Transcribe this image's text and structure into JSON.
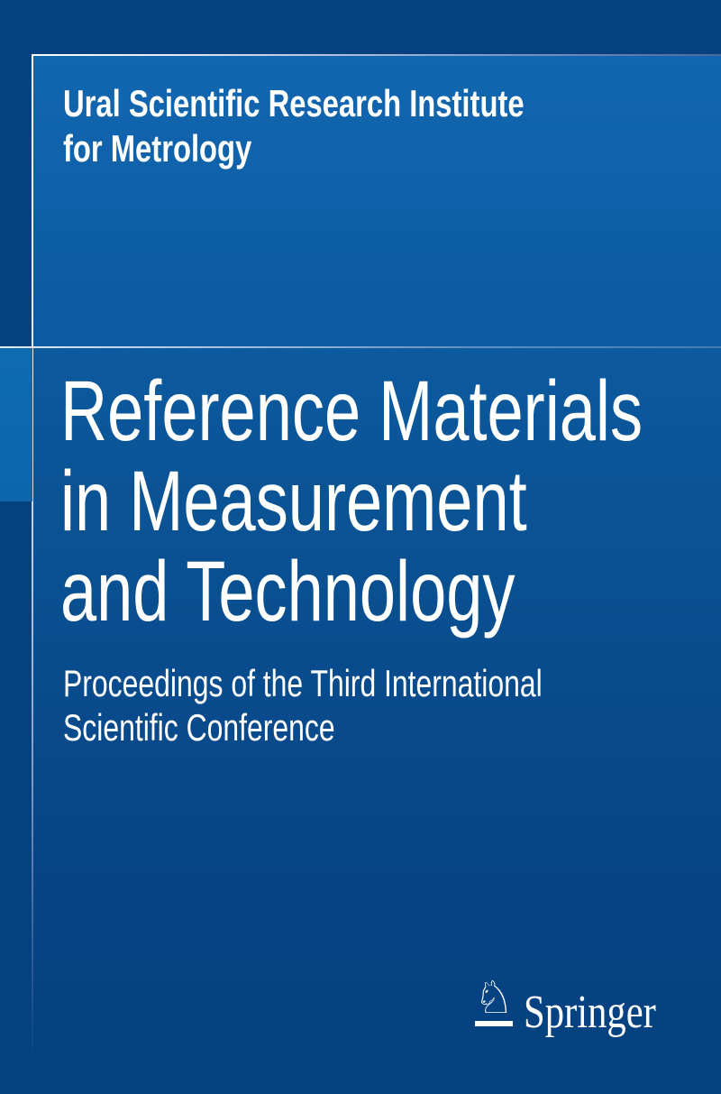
{
  "cover": {
    "institute_lines": [
      "Ural Scientific Research Institute",
      "for Metrology"
    ],
    "title_lines": [
      "Reference Materials",
      "in Measurement",
      "and Technology"
    ],
    "subtitle_lines": [
      "Proceedings of the Third International",
      "Scientific Conference"
    ],
    "publisher": {
      "name": "Springer",
      "logo_glyph": "♘"
    },
    "colors": {
      "outer_navy": "#05417e",
      "panel_gradient_top": "#1267b0",
      "panel_gradient_bottom": "#05417e",
      "left_accent_blue": "#0e69ae",
      "edge_line_white": "#ffffff",
      "text_white": "#ffffff"
    }
  }
}
